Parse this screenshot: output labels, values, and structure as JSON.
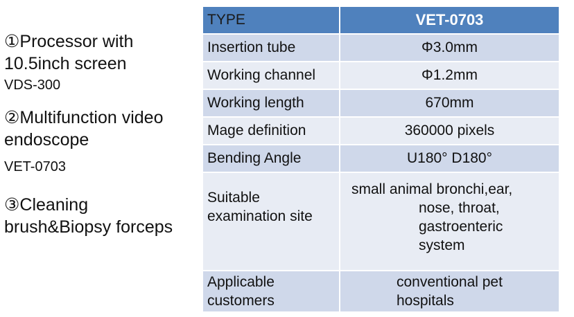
{
  "left_items": [
    {
      "title": "①Processor with 10.5inch screen",
      "sub": "VDS-300"
    },
    {
      "title": "②Multifunction video endoscope",
      "sub": "VET-0703"
    },
    {
      "title": "③Cleaning brush&Biopsy forceps",
      "sub": ""
    }
  ],
  "table": {
    "header": {
      "label": "TYPE",
      "value": "VET-0703"
    },
    "rows": [
      {
        "label": "Insertion tube",
        "value": "Φ3.0mm"
      },
      {
        "label": "Working channel",
        "value": "Φ1.2mm"
      },
      {
        "label": "Working length",
        "value": "670mm"
      },
      {
        "label": "Mage definition",
        "value": "360000 pixels"
      },
      {
        "label": "Bending Angle",
        "value": "U180° D180°"
      },
      {
        "label": "Suitable examination site",
        "value_line1": "small animal bronchi,ear,",
        "value_line2": "nose, throat, gastroenteric system"
      },
      {
        "label": "Applicable customers",
        "value": "conventional pet hospitals"
      }
    ]
  }
}
